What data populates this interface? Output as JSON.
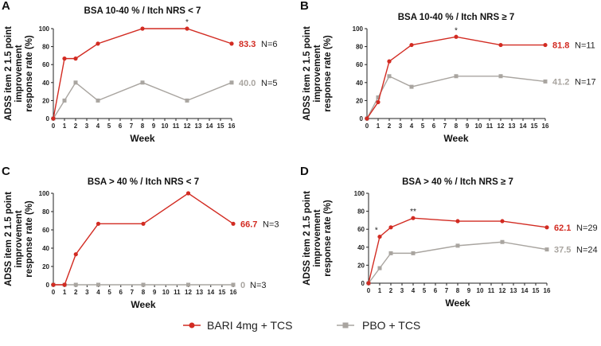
{
  "colors": {
    "bari": "#d22b22",
    "pbo": "#a9a5a0",
    "axis": "#222222"
  },
  "legend": {
    "position": "bottom-center",
    "items": [
      {
        "label": "BARI 4mg + TCS",
        "marker": "circle",
        "color": "#d22b22"
      },
      {
        "label": "PBO + TCS",
        "marker": "square",
        "color": "#a9a5a0"
      }
    ]
  },
  "chart_data": [
    {
      "type": "line",
      "panel": "A",
      "title": "BSA 10-40 % / Itch NRS < 7",
      "xlabel": "Week",
      "ylabel_lines": [
        "ADSS item 2 1.5 point",
        "improvement",
        "response rate (%)"
      ],
      "xlim": [
        0,
        16
      ],
      "ylim": [
        0,
        100
      ],
      "xticks": [
        "0",
        "1",
        "2",
        "3",
        "4",
        "5",
        "6",
        "7",
        "8",
        "9",
        "10",
        "11",
        "12",
        "13",
        "14",
        "15",
        "16"
      ],
      "yticks": [
        "0",
        "20",
        "40",
        "60",
        "80",
        "100"
      ],
      "x": [
        0,
        1,
        2,
        4,
        8,
        12,
        16
      ],
      "series": [
        {
          "name": "BARI 4mg + TCS",
          "values": [
            0,
            66.7,
            66.7,
            83.3,
            100,
            100,
            83.3
          ],
          "end_label": "83.3",
          "n_label": "N=6"
        },
        {
          "name": "PBO + TCS",
          "values": [
            0,
            20,
            40,
            20,
            40,
            20,
            40
          ],
          "end_label": "40.0",
          "n_label": "N=5"
        }
      ],
      "annotations": [
        {
          "x": 12,
          "text": "*"
        }
      ]
    },
    {
      "type": "line",
      "panel": "B",
      "title": "BSA 10-40 % / Itch NRS ≥ 7",
      "xlabel": "Week",
      "ylabel_lines": [
        "ADSS item 2 1.5 point",
        "improvement",
        "response rate (%)"
      ],
      "xlim": [
        0,
        16
      ],
      "ylim": [
        0,
        100
      ],
      "xticks": [
        "0",
        "1",
        "2",
        "3",
        "4",
        "5",
        "6",
        "7",
        "8",
        "9",
        "10",
        "11",
        "12",
        "13",
        "14",
        "15",
        "16"
      ],
      "yticks": [
        "0",
        "20",
        "40",
        "60",
        "80",
        "100"
      ],
      "x": [
        0,
        1,
        2,
        4,
        8,
        12,
        16
      ],
      "series": [
        {
          "name": "BARI 4mg + TCS",
          "values": [
            0,
            18.2,
            63.6,
            81.8,
            90.9,
            81.8,
            81.8
          ],
          "end_label": "81.8",
          "n_label": "N=11"
        },
        {
          "name": "PBO + TCS",
          "values": [
            0,
            23.5,
            47.1,
            35.3,
            47.1,
            47.1,
            41.2
          ],
          "end_label": "41.2",
          "n_label": "N=17"
        }
      ],
      "annotations": [
        {
          "x": 8,
          "text": "*"
        }
      ]
    },
    {
      "type": "line",
      "panel": "C",
      "title": "BSA > 40 % / Itch NRS < 7",
      "xlabel": "Week",
      "ylabel_lines": [
        "ADSS item 2 1.5 point",
        "improvement",
        "response rate (%)"
      ],
      "xlim": [
        0,
        16
      ],
      "ylim": [
        0,
        100
      ],
      "xticks": [
        "0",
        "1",
        "2",
        "3",
        "4",
        "5",
        "6",
        "7",
        "8",
        "9",
        "10",
        "11",
        "12",
        "13",
        "14",
        "15",
        "16"
      ],
      "yticks": [
        "0",
        "20",
        "40",
        "60",
        "80",
        "100"
      ],
      "x": [
        0,
        1,
        2,
        4,
        8,
        12,
        16
      ],
      "series": [
        {
          "name": "BARI 4mg + TCS",
          "values": [
            0,
            0,
            33.3,
            66.7,
            66.7,
            100,
            66.7
          ],
          "end_label": "66.7",
          "n_label": "N=3"
        },
        {
          "name": "PBO + TCS",
          "values": [
            0,
            0,
            0,
            0,
            0,
            0,
            0
          ],
          "end_label": "0",
          "n_label": "N=3"
        }
      ],
      "annotations": []
    },
    {
      "type": "line",
      "panel": "D",
      "title": "BSA > 40 % / Itch NRS ≥ 7",
      "xlabel": "Week",
      "ylabel_lines": [
        "ADSS item 2 1.5 point",
        "improvement",
        "response rate (%)"
      ],
      "xlim": [
        0,
        16
      ],
      "ylim": [
        0,
        100
      ],
      "xticks": [
        "0",
        "1",
        "2",
        "3",
        "4",
        "5",
        "6",
        "7",
        "8",
        "9",
        "10",
        "11",
        "12",
        "13",
        "14",
        "15",
        "16"
      ],
      "yticks": [
        "0",
        "20",
        "40",
        "60",
        "80",
        "100"
      ],
      "x": [
        0,
        1,
        2,
        4,
        8,
        12,
        16
      ],
      "series": [
        {
          "name": "BARI 4mg + TCS",
          "values": [
            0,
            51.7,
            62.1,
            72.4,
            69.0,
            69.0,
            62.1
          ],
          "end_label": "62.1",
          "n_label": "N=29"
        },
        {
          "name": "PBO + TCS",
          "values": [
            0,
            16.7,
            33.3,
            33.3,
            41.7,
            45.8,
            37.5
          ],
          "end_label": "37.5",
          "n_label": "N=24"
        }
      ],
      "annotations": [
        {
          "x": 0.7,
          "text": "*"
        },
        {
          "x": 4,
          "text": "**"
        }
      ]
    }
  ]
}
